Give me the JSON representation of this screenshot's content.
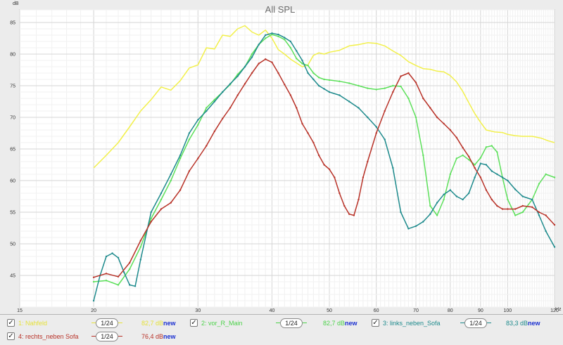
{
  "chart_data": {
    "type": "line",
    "title": "All SPL",
    "ylabel": "dB",
    "xunit": "Hz",
    "xscale": "log",
    "xlim": [
      15,
      120
    ],
    "ylim": [
      40,
      87
    ],
    "xticks": [
      15,
      20,
      30,
      40,
      50,
      60,
      70,
      80,
      90,
      100,
      120
    ],
    "xtick_labels": [
      "15",
      "20",
      "30",
      "40",
      "50",
      "60",
      "70",
      "80",
      "90",
      "100",
      "120"
    ],
    "yticks": [
      45,
      50,
      55,
      60,
      65,
      70,
      75,
      80,
      85
    ],
    "grid": true,
    "series": [
      {
        "name": "1: Nahfeld",
        "color": "#f2f04a",
        "markers": false,
        "x": [
          20,
          21,
          22,
          23,
          24,
          25,
          26,
          27,
          28,
          29,
          30,
          31,
          32,
          33,
          34,
          35,
          36,
          37,
          38,
          39,
          40,
          41,
          42,
          43,
          44,
          45,
          46,
          47,
          48,
          49,
          50,
          52,
          54,
          56,
          58,
          60,
          62,
          64,
          66,
          68,
          70,
          72,
          74,
          76,
          78,
          80,
          82,
          84,
          86,
          88,
          90,
          92,
          95,
          98,
          100,
          103,
          106,
          110,
          114,
          117,
          120
        ],
        "y": [
          62.0,
          64.0,
          66.0,
          68.5,
          71.0,
          72.8,
          74.8,
          74.3,
          75.8,
          77.8,
          78.3,
          81.0,
          80.8,
          83.0,
          82.8,
          84.0,
          84.5,
          83.5,
          83.0,
          83.8,
          82.5,
          80.7,
          80.0,
          79.2,
          78.6,
          78.0,
          78.3,
          79.8,
          80.2,
          80.0,
          80.3,
          80.6,
          81.3,
          81.5,
          81.8,
          81.7,
          81.3,
          80.5,
          79.8,
          78.8,
          78.2,
          77.7,
          77.6,
          77.3,
          77.2,
          76.6,
          75.6,
          74.1,
          72.3,
          70.6,
          69.2,
          68.0,
          67.7,
          67.6,
          67.3,
          67.1,
          67.0,
          67.0,
          66.7,
          66.3,
          66.0
        ]
      },
      {
        "name": "2: vor_R_Main",
        "color": "#5ce05a",
        "markers": true,
        "x": [
          20,
          21,
          22,
          23,
          24,
          25,
          26,
          27,
          28,
          29,
          30,
          31,
          32,
          33,
          34,
          35,
          36,
          37,
          38,
          39,
          40,
          41,
          42,
          43,
          44,
          45,
          46,
          47,
          48,
          49,
          50,
          52,
          54,
          56,
          58,
          60,
          62,
          64,
          66,
          68,
          70,
          72,
          74,
          76,
          78,
          80,
          82,
          84,
          86,
          88,
          90,
          92,
          94,
          96,
          98,
          100,
          103,
          106,
          110,
          113,
          116,
          120
        ],
        "y": [
          44.0,
          44.2,
          43.5,
          46.0,
          49.5,
          54.0,
          57.0,
          60.0,
          63.5,
          66.5,
          68.8,
          71.5,
          72.8,
          74.0,
          75.2,
          76.8,
          78.0,
          80.0,
          81.5,
          82.5,
          83.1,
          82.8,
          82.3,
          81.0,
          79.3,
          78.5,
          78.2,
          77.0,
          76.3,
          76.0,
          75.9,
          75.7,
          75.4,
          75.0,
          74.6,
          74.4,
          74.6,
          75.0,
          74.9,
          73.0,
          70.0,
          64.0,
          56.0,
          54.5,
          57.0,
          61.0,
          63.5,
          64.0,
          63.3,
          62.5,
          63.6,
          65.3,
          65.5,
          64.5,
          60.5,
          57.0,
          54.5,
          55.0,
          57.0,
          59.5,
          61.0,
          60.5
        ]
      },
      {
        "name": "3: links_neben_Sofa",
        "color": "#1d8a8c",
        "markers": true,
        "x": [
          20,
          20.5,
          21,
          21.5,
          22,
          22.5,
          23,
          23.5,
          24,
          25,
          26,
          27,
          28,
          29,
          30,
          31,
          32,
          33,
          34,
          35,
          36,
          37,
          38,
          39,
          40,
          41,
          42,
          43,
          44,
          45,
          46,
          47,
          48,
          49,
          50,
          52,
          54,
          56,
          58,
          60,
          62,
          64,
          66,
          68,
          70,
          72,
          74,
          76,
          78,
          80,
          82,
          84,
          86,
          88,
          90,
          92,
          94,
          96,
          98,
          100,
          103,
          106,
          110,
          113,
          116,
          120
        ],
        "y": [
          41.0,
          45.0,
          48.0,
          48.5,
          47.8,
          45.5,
          43.5,
          43.3,
          47.5,
          55.0,
          58.0,
          61.0,
          64.0,
          67.5,
          69.6,
          71.0,
          72.5,
          74.0,
          75.3,
          76.5,
          78.0,
          79.5,
          81.5,
          83.0,
          83.3,
          83.1,
          82.6,
          82.0,
          80.5,
          79.0,
          77.0,
          76.0,
          75.0,
          74.5,
          74.0,
          73.5,
          72.5,
          71.5,
          70.0,
          68.5,
          66.5,
          62.0,
          55.0,
          52.4,
          52.8,
          53.5,
          54.7,
          56.5,
          57.8,
          58.5,
          57.5,
          57.0,
          58.0,
          60.5,
          62.7,
          62.5,
          61.5,
          61.0,
          60.5,
          60.0,
          58.6,
          57.5,
          57.0,
          54.5,
          52.0,
          49.5
        ]
      },
      {
        "name": "4: rechts_neben Sofa",
        "color": "#b83228",
        "markers": true,
        "x": [
          20,
          21,
          22,
          23,
          24,
          25,
          26,
          27,
          28,
          29,
          30,
          31,
          32,
          33,
          34,
          35,
          36,
          37,
          38,
          39,
          40,
          41,
          42,
          43,
          44,
          45,
          46,
          47,
          48,
          49,
          50,
          51,
          52,
          53,
          54,
          55,
          56,
          57,
          58,
          60,
          62,
          64,
          66,
          68,
          70,
          72,
          74,
          76,
          78,
          80,
          82,
          84,
          86,
          88,
          90,
          92,
          94,
          96,
          98,
          100,
          103,
          106,
          110,
          113,
          116,
          120
        ],
        "y": [
          44.7,
          45.3,
          44.8,
          47.0,
          50.5,
          53.5,
          55.5,
          56.5,
          58.5,
          61.5,
          63.5,
          65.5,
          67.8,
          69.8,
          71.5,
          73.5,
          75.3,
          77.0,
          78.5,
          79.2,
          78.7,
          77.0,
          75.2,
          73.5,
          71.5,
          69.0,
          67.5,
          66.0,
          64.0,
          62.5,
          61.8,
          60.5,
          58.0,
          56.0,
          54.7,
          54.5,
          57.0,
          60.5,
          63.0,
          67.5,
          71.0,
          74.0,
          76.5,
          77.0,
          75.5,
          73.0,
          71.5,
          70.0,
          69.0,
          68.0,
          66.8,
          65.2,
          63.8,
          62.0,
          60.5,
          58.5,
          57.0,
          56.0,
          55.5,
          55.5,
          55.5,
          56.0,
          55.8,
          55.0,
          54.5,
          53.0
        ]
      }
    ]
  },
  "legend": {
    "new_label": "new",
    "items": [
      {
        "label": "1: Nahfeld",
        "smoothing": "1/24",
        "level": "82,7 dB",
        "checked": true,
        "color": "#e6e23a"
      },
      {
        "label": "2: vor_R_Main",
        "smoothing": "1/24",
        "level": "82,7 dB",
        "checked": true,
        "color": "#4cd24a"
      },
      {
        "label": "3: links_neben_Sofa",
        "smoothing": "1/24",
        "level": "83,3 dB",
        "checked": true,
        "color": "#1d8a8c"
      },
      {
        "label": "4: rechts_neben Sofa",
        "smoothing": "1/24",
        "level": "76,4 dB",
        "checked": true,
        "color": "#b83228"
      }
    ]
  }
}
